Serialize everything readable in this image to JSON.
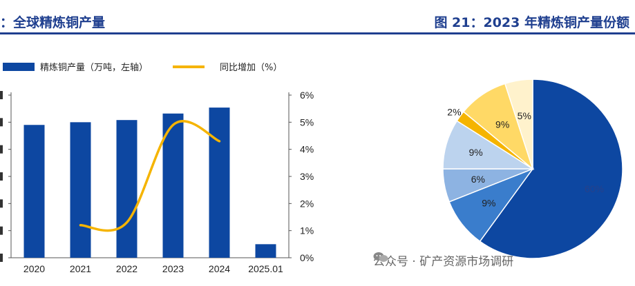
{
  "left_title": "：全球精炼铜产量",
  "right_title": "图 21：2023 年精炼铜产量份额",
  "watermark": "公众号 · 矿产资源市场调研",
  "watermark_icon": "wechat-icon",
  "colors": {
    "bar": "#0d47a1",
    "line": "#f5b400",
    "title": "#1f3f8f",
    "pie": [
      "#0d47a1",
      "#3a7dcc",
      "#8db3e2",
      "#bcd3ee",
      "#f5b400",
      "#ffd966",
      "#fff2cc"
    ]
  },
  "chart_data": [
    {
      "type": "bar",
      "categories": [
        "2020",
        "2021",
        "2022",
        "2023",
        "2024",
        "2025.01"
      ],
      "series": [
        {
          "name": "精炼铜产量（万吨，左轴）",
          "type": "bar",
          "axis": "left",
          "values": [
            2450,
            2500,
            2540,
            2660,
            2770,
            250
          ]
        },
        {
          "name": "同比增加（%）",
          "type": "line",
          "axis": "right",
          "values": [
            null,
            1.2,
            1.3,
            4.9,
            4.3,
            null
          ]
        }
      ],
      "y_right_ticks": [
        "0%",
        "1%",
        "2%",
        "3%",
        "4%",
        "5%",
        "6%"
      ],
      "ylim_left": [
        0,
        3000
      ],
      "ylim_right": [
        0,
        6
      ],
      "legend_position": "top-left"
    },
    {
      "type": "pie",
      "slices": [
        {
          "label": "60%",
          "value": 60
        },
        {
          "label": "9%",
          "value": 9
        },
        {
          "label": "6%",
          "value": 6
        },
        {
          "label": "9%",
          "value": 9
        },
        {
          "label": "2%",
          "value": 2
        },
        {
          "label": "9%",
          "value": 9
        },
        {
          "label": "5%",
          "value": 5
        }
      ]
    }
  ]
}
